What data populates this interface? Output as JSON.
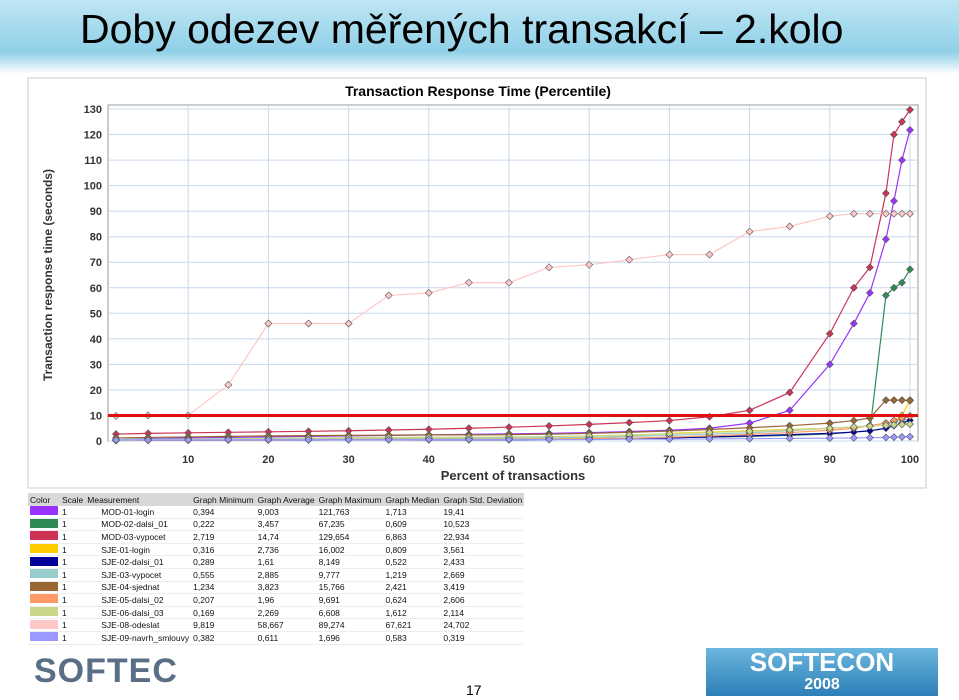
{
  "title": "Doby odezev měřených transakcí – 2.kolo",
  "chart_data": {
    "type": "line",
    "title": "Transaction Response Time (Percentile)",
    "x_label": "Percent of transactions",
    "y_label": "Transaction response time (seconds)",
    "x": [
      1,
      5,
      10,
      15,
      20,
      25,
      30,
      35,
      40,
      45,
      50,
      55,
      60,
      65,
      70,
      75,
      80,
      85,
      90,
      93,
      95,
      97,
      98,
      99,
      100
    ],
    "xlim": [
      0,
      101
    ],
    "xticks": [
      10,
      20,
      30,
      40,
      50,
      60,
      70,
      80,
      90,
      100
    ],
    "ylim": [
      0,
      130
    ],
    "yticks": [
      0,
      10,
      20,
      30,
      40,
      50,
      60,
      70,
      80,
      90,
      100,
      110,
      120,
      130
    ],
    "grid": true,
    "threshold": 10,
    "threshold_color": "#e01010",
    "series": [
      {
        "name": "MOD-01-login",
        "color": "#9933ff",
        "values": [
          0.4,
          1,
          1.2,
          1.4,
          1.6,
          1.8,
          2,
          2.2,
          2.4,
          2.6,
          2.8,
          3,
          3.3,
          3.7,
          4.2,
          5,
          7,
          12,
          30,
          46,
          58,
          79,
          94,
          110,
          121.8
        ]
      },
      {
        "name": "MOD-02-dalsi_01",
        "color": "#2e8b57",
        "values": [
          0.2,
          0.3,
          0.4,
          0.5,
          0.5,
          0.6,
          0.6,
          0.6,
          0.7,
          0.7,
          0.8,
          0.9,
          1,
          1.1,
          1.3,
          1.5,
          1.8,
          2.2,
          2.8,
          3.5,
          4,
          57,
          60,
          62,
          67.2
        ]
      },
      {
        "name": "MOD-03-vypocet",
        "color": "#cc3355",
        "values": [
          2.7,
          3,
          3.2,
          3.4,
          3.6,
          3.8,
          4,
          4.3,
          4.6,
          5,
          5.4,
          5.9,
          6.5,
          7.2,
          8,
          9.5,
          12,
          19,
          42,
          60,
          68,
          97,
          120,
          125,
          129.7
        ]
      },
      {
        "name": "SJE-01-login",
        "color": "#ffcc00",
        "values": [
          0.3,
          0.4,
          0.5,
          0.6,
          0.7,
          0.7,
          0.8,
          0.8,
          0.8,
          0.9,
          0.9,
          1,
          1.2,
          2,
          3,
          3.5,
          4,
          4.5,
          5,
          5.5,
          6,
          7,
          8,
          10,
          16
        ]
      },
      {
        "name": "SJE-02-dalsi_01",
        "color": "#000099",
        "values": [
          0.3,
          0.3,
          0.3,
          0.4,
          0.4,
          0.4,
          0.5,
          0.5,
          0.5,
          0.5,
          0.5,
          0.6,
          0.7,
          0.9,
          1.2,
          1.6,
          2,
          2.5,
          3,
          3.5,
          4,
          5,
          6,
          7,
          8.1
        ]
      },
      {
        "name": "SJE-03-vypocet",
        "color": "#99cccc",
        "values": [
          0.6,
          0.7,
          0.8,
          0.9,
          1,
          1,
          1.1,
          1.1,
          1.2,
          1.2,
          1.2,
          1.3,
          1.5,
          1.8,
          2.2,
          2.7,
          3.2,
          4,
          5,
          5.5,
          6,
          7,
          7.5,
          8.5,
          9.8
        ]
      },
      {
        "name": "SJE-04-sjednat",
        "color": "#996633",
        "values": [
          1.2,
          1.4,
          1.6,
          1.8,
          2,
          2.1,
          2.2,
          2.3,
          2.4,
          2.4,
          2.5,
          2.7,
          3,
          3.4,
          3.9,
          4.5,
          5.2,
          6,
          7,
          8,
          9,
          16,
          16,
          16,
          15.8
        ]
      },
      {
        "name": "SJE-05-dalsi_02",
        "color": "#ff9966",
        "values": [
          0.2,
          0.3,
          0.3,
          0.4,
          0.4,
          0.5,
          0.5,
          0.5,
          0.6,
          0.6,
          0.6,
          0.7,
          0.9,
          1.1,
          1.5,
          2,
          2.6,
          3.3,
          4.2,
          5,
          6,
          7,
          8,
          9,
          9.7
        ]
      },
      {
        "name": "SJE-06-dalsi_03",
        "color": "#c8d888",
        "values": [
          0.2,
          0.4,
          0.6,
          0.8,
          1,
          1.2,
          1.3,
          1.4,
          1.5,
          1.5,
          1.6,
          1.7,
          2,
          2.4,
          2.8,
          3.3,
          3.8,
          4.3,
          5,
          5.5,
          5.8,
          6.1,
          6.3,
          6.5,
          6.6
        ]
      },
      {
        "name": "SJE-08-odeslat",
        "color": "#ffc8c8",
        "values": [
          9.8,
          10,
          10,
          22,
          46,
          46,
          46,
          57,
          58,
          62,
          62,
          68,
          69,
          71,
          73,
          73,
          82,
          84,
          88,
          89,
          89,
          89,
          89,
          89,
          89
        ]
      },
      {
        "name": "SJE-09-navrh_smlouvy",
        "color": "#9999ff",
        "values": [
          0.4,
          0.4,
          0.4,
          0.5,
          0.5,
          0.5,
          0.5,
          0.5,
          0.6,
          0.6,
          0.6,
          0.6,
          0.6,
          0.7,
          0.7,
          0.8,
          0.9,
          1,
          1.1,
          1.2,
          1.3,
          1.4,
          1.5,
          1.6,
          1.7
        ]
      }
    ]
  },
  "table": {
    "columns": [
      "Color",
      "Scale",
      "Measurement",
      "Graph Minimum",
      "Graph Average",
      "Graph Maximum",
      "Graph Median",
      "Graph Std. Deviation"
    ],
    "rows": [
      [
        "1",
        "0,394",
        "9,003",
        "121,763",
        "1,713",
        "19,41"
      ],
      [
        "1",
        "0,222",
        "3,457",
        "67,235",
        "0,609",
        "10,523"
      ],
      [
        "1",
        "2,719",
        "14,74",
        "129,654",
        "6,863",
        "22,934"
      ],
      [
        "1",
        "0,316",
        "2,736",
        "16,002",
        "0,809",
        "3,561"
      ],
      [
        "1",
        "0,289",
        "1,61",
        "8,149",
        "0,522",
        "2,433"
      ],
      [
        "1",
        "0,555",
        "2,885",
        "9,777",
        "1,219",
        "2,669"
      ],
      [
        "1",
        "1,234",
        "3,823",
        "15,766",
        "2,421",
        "3,419"
      ],
      [
        "1",
        "0,207",
        "1,96",
        "9,691",
        "0,624",
        "2,606"
      ],
      [
        "1",
        "0,169",
        "2,269",
        "6,608",
        "1,612",
        "2,114"
      ],
      [
        "1",
        "9,819",
        "58,667",
        "89,274",
        "67,621",
        "24,702"
      ],
      [
        "1",
        "0,382",
        "0,611",
        "1,696",
        "0,583",
        "0,319"
      ]
    ]
  },
  "logo_left": "SOFTEC",
  "logo_right": {
    "name": "SOFTECON",
    "year": "2008"
  },
  "page_number": "17"
}
